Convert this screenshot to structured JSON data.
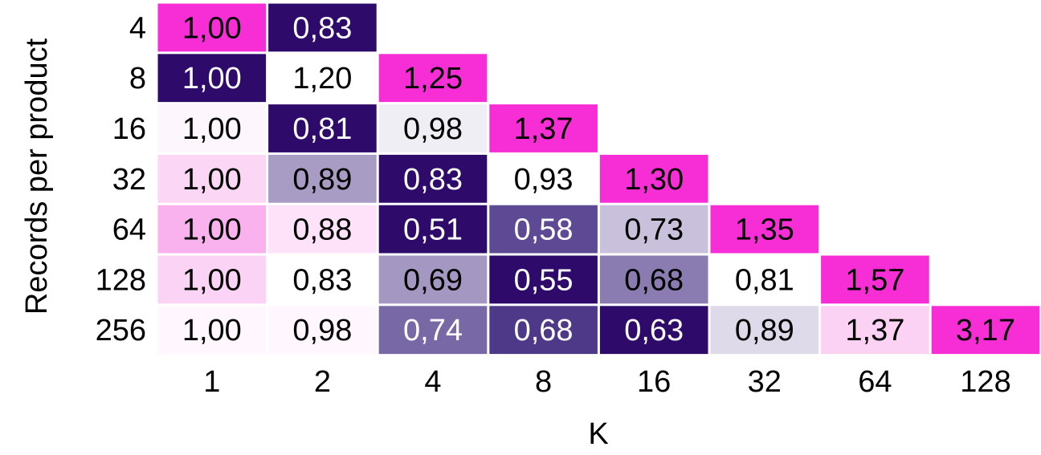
{
  "chart_data": {
    "type": "heatmap",
    "xlabel": "K",
    "ylabel": "Records per product",
    "x_categories": [
      "1",
      "2",
      "4",
      "8",
      "16",
      "32",
      "64",
      "128"
    ],
    "y_categories": [
      "4",
      "8",
      "16",
      "32",
      "64",
      "128",
      "256"
    ],
    "values": [
      [
        "1,00",
        "0,83",
        null,
        null,
        null,
        null,
        null,
        null
      ],
      [
        "1,00",
        "1,20",
        "1,25",
        null,
        null,
        null,
        null,
        null
      ],
      [
        "1,00",
        "0,81",
        "0,98",
        "1,37",
        null,
        null,
        null,
        null
      ],
      [
        "1,00",
        "0,89",
        "0,83",
        "0,93",
        "1,30",
        null,
        null,
        null
      ],
      [
        "1,00",
        "0,88",
        "0,51",
        "0,58",
        "0,73",
        "1,35",
        null,
        null
      ],
      [
        "1,00",
        "0,83",
        "0,69",
        "0,55",
        "0,68",
        "0,81",
        "1,57",
        null
      ],
      [
        "1,00",
        "0,98",
        "0,74",
        "0,68",
        "0,63",
        "0,89",
        "1,37",
        "3,17"
      ]
    ],
    "colors": [
      [
        "#f72ed6",
        "#2e0a6b",
        null,
        null,
        null,
        null,
        null,
        null
      ],
      [
        "#2e0a6b",
        "#ffffff",
        "#f72ed6",
        null,
        null,
        null,
        null,
        null
      ],
      [
        "#fdf6fc",
        "#2e0a6b",
        "#efeef4",
        "#f72ed6",
        null,
        null,
        null,
        null
      ],
      [
        "#fcd6f5",
        "#a89bc4",
        "#2e0a6b",
        "#ffffff",
        "#f72ed6",
        null,
        null,
        null
      ],
      [
        "#fab2ee",
        "#fde2f9",
        "#2e0a6b",
        "#5e4a94",
        "#c9c1dc",
        "#f72ed6",
        null,
        null
      ],
      [
        "#fbd3f4",
        "#ffffff",
        "#a497c2",
        "#2e0a6b",
        "#8a7bb0",
        "#ffffff",
        "#f72ed6",
        null
      ],
      [
        "#fff7fd",
        "#fff7fd",
        "#7968a6",
        "#4d3987",
        "#2e0a6b",
        "#dedaea",
        "#fcd2f4",
        "#f72ed6"
      ]
    ],
    "text_colors": [
      [
        "#000000",
        "#ffffff",
        null,
        null,
        null,
        null,
        null,
        null
      ],
      [
        "#ffffff",
        "#000000",
        "#000000",
        null,
        null,
        null,
        null,
        null
      ],
      [
        "#000000",
        "#ffffff",
        "#000000",
        "#000000",
        null,
        null,
        null,
        null
      ],
      [
        "#000000",
        "#000000",
        "#ffffff",
        "#000000",
        "#000000",
        null,
        null,
        null
      ],
      [
        "#000000",
        "#000000",
        "#ffffff",
        "#ffffff",
        "#000000",
        "#000000",
        null,
        null
      ],
      [
        "#000000",
        "#000000",
        "#000000",
        "#ffffff",
        "#000000",
        "#000000",
        "#000000",
        null
      ],
      [
        "#000000",
        "#000000",
        "#ffffff",
        "#ffffff",
        "#ffffff",
        "#000000",
        "#000000",
        "#000000"
      ]
    ],
    "grid": false,
    "legend": "none"
  }
}
